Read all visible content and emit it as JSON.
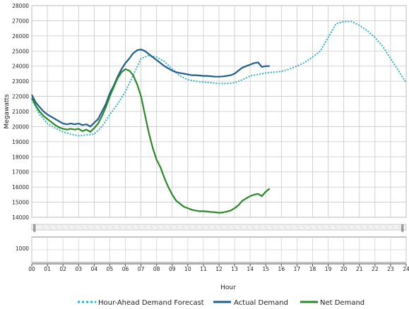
{
  "chart_data": {
    "type": "line",
    "xlabel": "Hour",
    "ylabel": "Megawatts",
    "ylim": [
      14000,
      28000
    ],
    "y_ticks": [
      "14000",
      "15000",
      "16000",
      "17000",
      "18000",
      "19000",
      "20000",
      "21000",
      "22000",
      "23000",
      "24000",
      "25000",
      "26000",
      "27000",
      "28000"
    ],
    "x_ticks": [
      "00",
      "01",
      "02",
      "03",
      "04",
      "05",
      "06",
      "07",
      "08",
      "09",
      "10",
      "11",
      "12",
      "13",
      "14",
      "15",
      "16",
      "17",
      "18",
      "19",
      "20",
      "21",
      "22",
      "23",
      "24"
    ],
    "xlim": [
      0,
      24
    ],
    "grid": true,
    "legend_position": "bottom",
    "lower_panel": {
      "ylim": [
        0,
        2000
      ],
      "y_ticks": [
        "1000"
      ]
    },
    "series": [
      {
        "name": "Hour-Ahead Demand Forecast",
        "color": "#2fb5c4",
        "style": "dotted",
        "x": [
          0,
          0.5,
          1,
          1.5,
          2,
          2.5,
          3,
          3.5,
          4,
          4.5,
          5,
          5.5,
          6,
          6.5,
          7,
          7.5,
          8,
          8.5,
          9,
          9.5,
          10,
          10.5,
          11,
          11.5,
          12,
          12.5,
          13,
          13.5,
          14,
          14.5,
          15,
          15.5,
          16,
          16.5,
          17,
          17.5,
          18,
          18.5,
          19,
          19.5,
          20,
          20.5,
          21,
          21.5,
          22,
          22.5,
          23,
          23.5,
          24
        ],
        "values": [
          21800,
          20800,
          20200,
          19900,
          19650,
          19500,
          19400,
          19450,
          19500,
          20000,
          20800,
          21500,
          22300,
          23400,
          24500,
          24700,
          24600,
          24300,
          23800,
          23350,
          23100,
          23000,
          22950,
          22900,
          22850,
          22850,
          22900,
          23100,
          23350,
          23450,
          23550,
          23600,
          23650,
          23800,
          24000,
          24250,
          24600,
          25000,
          25900,
          26800,
          26950,
          26950,
          26700,
          26350,
          25900,
          25300,
          24500,
          23700,
          22900
        ]
      },
      {
        "name": "Actual Demand",
        "color": "#1f5f8f",
        "style": "solid",
        "x": [
          0,
          0.25,
          0.5,
          0.75,
          1,
          1.25,
          1.5,
          1.75,
          2,
          2.25,
          2.5,
          2.75,
          3,
          3.25,
          3.5,
          3.75,
          4,
          4.25,
          4.5,
          4.75,
          5,
          5.25,
          5.5,
          5.75,
          6,
          6.25,
          6.5,
          6.75,
          7,
          7.25,
          7.5,
          7.75,
          8,
          8.25,
          8.5,
          8.75,
          9,
          9.25,
          9.5,
          9.75,
          10,
          10.25,
          10.5,
          10.75,
          11,
          11.25,
          11.5,
          11.75,
          12,
          12.25,
          12.5,
          12.75,
          13,
          13.25,
          13.5,
          13.75,
          14,
          14.25,
          14.5,
          14.75,
          15,
          15.25
        ],
        "values": [
          22100,
          21600,
          21300,
          21000,
          20800,
          20650,
          20500,
          20350,
          20200,
          20150,
          20200,
          20150,
          20200,
          20100,
          20150,
          20000,
          20250,
          20500,
          21000,
          21500,
          22200,
          22700,
          23300,
          23800,
          24200,
          24500,
          24850,
          25050,
          25100,
          25000,
          24800,
          24600,
          24400,
          24200,
          24000,
          23850,
          23700,
          23600,
          23550,
          23500,
          23450,
          23400,
          23400,
          23380,
          23350,
          23350,
          23330,
          23300,
          23300,
          23320,
          23350,
          23400,
          23500,
          23700,
          23900,
          24000,
          24100,
          24200,
          24250,
          23950,
          24000,
          24000
        ]
      },
      {
        "name": "Net Demand",
        "color": "#2a8a2a",
        "style": "solid",
        "x": [
          0,
          0.25,
          0.5,
          0.75,
          1,
          1.25,
          1.5,
          1.75,
          2,
          2.25,
          2.5,
          2.75,
          3,
          3.25,
          3.5,
          3.75,
          4,
          4.25,
          4.5,
          4.75,
          5,
          5.25,
          5.5,
          5.75,
          6,
          6.25,
          6.5,
          6.75,
          7,
          7.25,
          7.5,
          7.75,
          8,
          8.25,
          8.5,
          8.75,
          9,
          9.25,
          9.5,
          9.75,
          10,
          10.25,
          10.5,
          10.75,
          11,
          11.25,
          11.5,
          11.75,
          12,
          12.25,
          12.5,
          12.75,
          13,
          13.25,
          13.5,
          13.75,
          14,
          14.25,
          14.5,
          14.75,
          15,
          15.25
        ],
        "values": [
          21900,
          21400,
          21000,
          20700,
          20500,
          20300,
          20100,
          19950,
          19850,
          19800,
          19850,
          19800,
          19850,
          19700,
          19800,
          19650,
          19900,
          20200,
          20700,
          21300,
          22000,
          22600,
          23200,
          23600,
          23800,
          23700,
          23400,
          22800,
          22000,
          20800,
          19600,
          18600,
          17800,
          17300,
          16600,
          16000,
          15500,
          15100,
          14900,
          14700,
          14600,
          14500,
          14450,
          14400,
          14400,
          14380,
          14350,
          14330,
          14300,
          14320,
          14380,
          14450,
          14600,
          14800,
          15100,
          15250,
          15400,
          15500,
          15550,
          15400,
          15700,
          15900
        ]
      }
    ]
  }
}
